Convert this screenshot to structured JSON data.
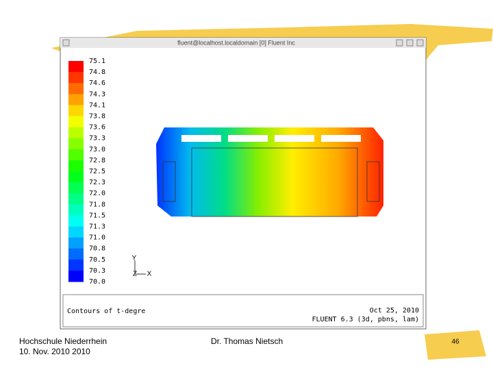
{
  "window": {
    "title": "fluent@localhost.localdomain [0] Fluent Inc"
  },
  "legend": {
    "labels": [
      "75.1",
      "74.8",
      "74.6",
      "74.3",
      "74.1",
      "73.8",
      "73.6",
      "73.3",
      "73.0",
      "72.8",
      "72.5",
      "72.3",
      "72.0",
      "71.8",
      "71.5",
      "71.3",
      "71.0",
      "70.8",
      "70.5",
      "70.3",
      "70.0"
    ]
  },
  "axes": {
    "y": "Y",
    "z": "Z",
    "x": "X"
  },
  "info": {
    "caption": "Contours of t-degre",
    "date": "Oct 25, 2010",
    "solver": "FLUENT 6.3 (3d, pbns, lam)"
  },
  "footer": {
    "institution": "Hochschule Niederrhein",
    "date": "10. Nov. 2010 2010",
    "author": "Dr. Thomas Nietsch",
    "page": "46"
  }
}
